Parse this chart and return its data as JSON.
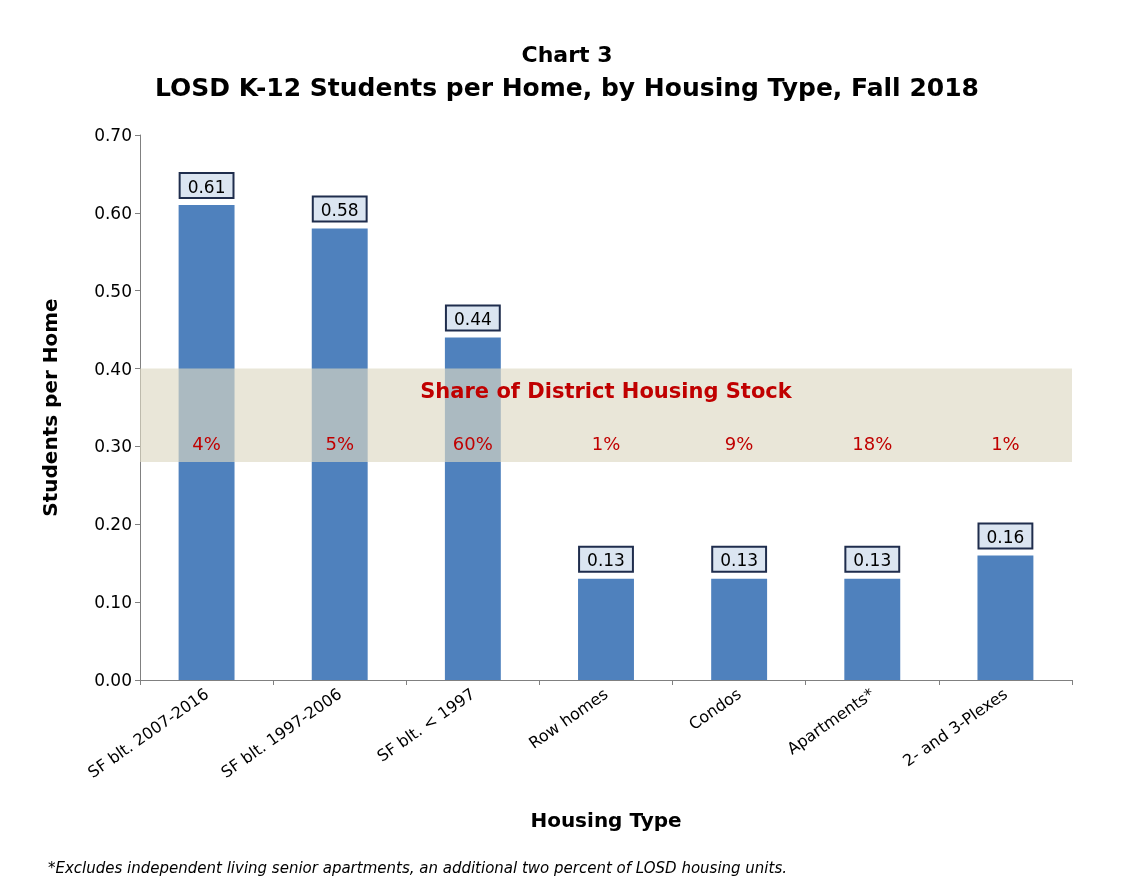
{
  "chart_data": {
    "type": "bar",
    "title": "Chart 3",
    "subtitle": "LOSD K-12 Students per Home, by Housing Type, Fall 2018",
    "xlabel": "Housing Type",
    "ylabel": "Students per Home",
    "categories": [
      "SF blt. 2007-2016",
      "SF blt. 1997-2006",
      "SF blt. < 1997",
      "Row homes",
      "Condos",
      "Apartments*",
      "2- and 3-Plexes"
    ],
    "values": [
      0.61,
      0.58,
      0.44,
      0.13,
      0.13,
      0.13,
      0.16
    ],
    "color": "#4f81bd",
    "data_labels": true,
    "ylim": [
      0,
      0.7
    ],
    "yticks": [
      {
        "value": 0,
        "label": "0.00"
      },
      {
        "value": 0.1,
        "label": "0.10"
      },
      {
        "value": 0.2,
        "label": "0.20"
      },
      {
        "value": 0.3,
        "label": "0.30"
      },
      {
        "value": 0.4,
        "label": "0.40"
      },
      {
        "value": 0.5,
        "label": "0.50"
      },
      {
        "value": 0.6,
        "label": "0.60"
      },
      {
        "value": 0.7,
        "label": "0.70"
      }
    ],
    "grid": false,
    "bands": [
      {
        "axis": "y",
        "from": 0.28,
        "to": 0.4,
        "label": "Share of District Housing Stock",
        "color": "#ddd9c3"
      }
    ],
    "annotations": [
      "4%",
      "5%",
      "60%",
      "1%",
      "9%",
      "18%",
      "1%",
      "*Excludes independent living senior apartments, an additional two percent of LOSD housing units."
    ]
  }
}
